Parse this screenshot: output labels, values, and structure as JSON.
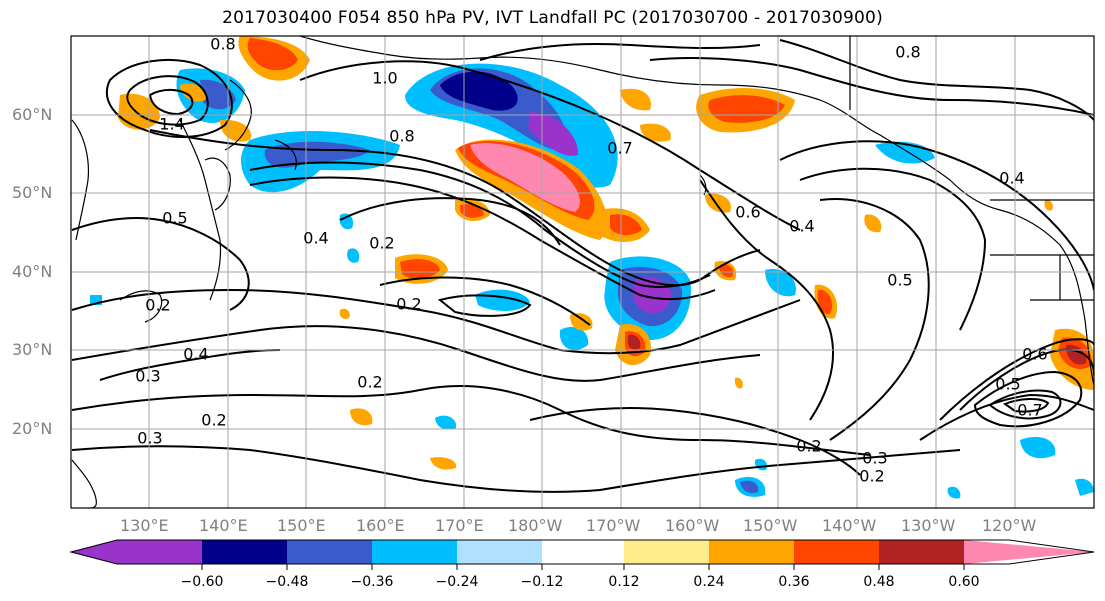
{
  "title": "2017030400 F054 850 hPa PV, IVT Landfall PC (2017030700 - 2017030900)",
  "map": {
    "lat_labels": [
      "60°N",
      "50°N",
      "40°N",
      "30°N",
      "20°N"
    ],
    "lon_labels": [
      "130°E",
      "140°E",
      "150°E",
      "160°E",
      "170°E",
      "180°W",
      "170°W",
      "160°W",
      "150°W",
      "140°W",
      "130°W",
      "120°W"
    ],
    "contour_labels": [
      "1.0",
      "0.8",
      "0.7",
      "0.6",
      "0.5",
      "0.4",
      "0.4",
      "0.2",
      "0.2",
      "0.2",
      "0.3",
      "0.3",
      "0.2",
      "0.2",
      "0.5",
      "0.2",
      "0.4",
      "0.5",
      "0.6",
      "0.7",
      "0.3",
      "0.2",
      "1.4",
      "0.8",
      "0.4",
      "0.8"
    ]
  },
  "colorbar": {
    "colors": [
      "#9933cc",
      "#00008b",
      "#3a5bcc",
      "#00bfff",
      "#b0e0ff",
      "#ffffff",
      "#ffec8b",
      "#ffa500",
      "#ff4500",
      "#b22222",
      "#ff88b0"
    ],
    "tick_labels": [
      "−0.60",
      "−0.48",
      "−0.36",
      "−0.24",
      "−0.12",
      "0.12",
      "0.24",
      "0.36",
      "0.48",
      "0.60"
    ]
  }
}
